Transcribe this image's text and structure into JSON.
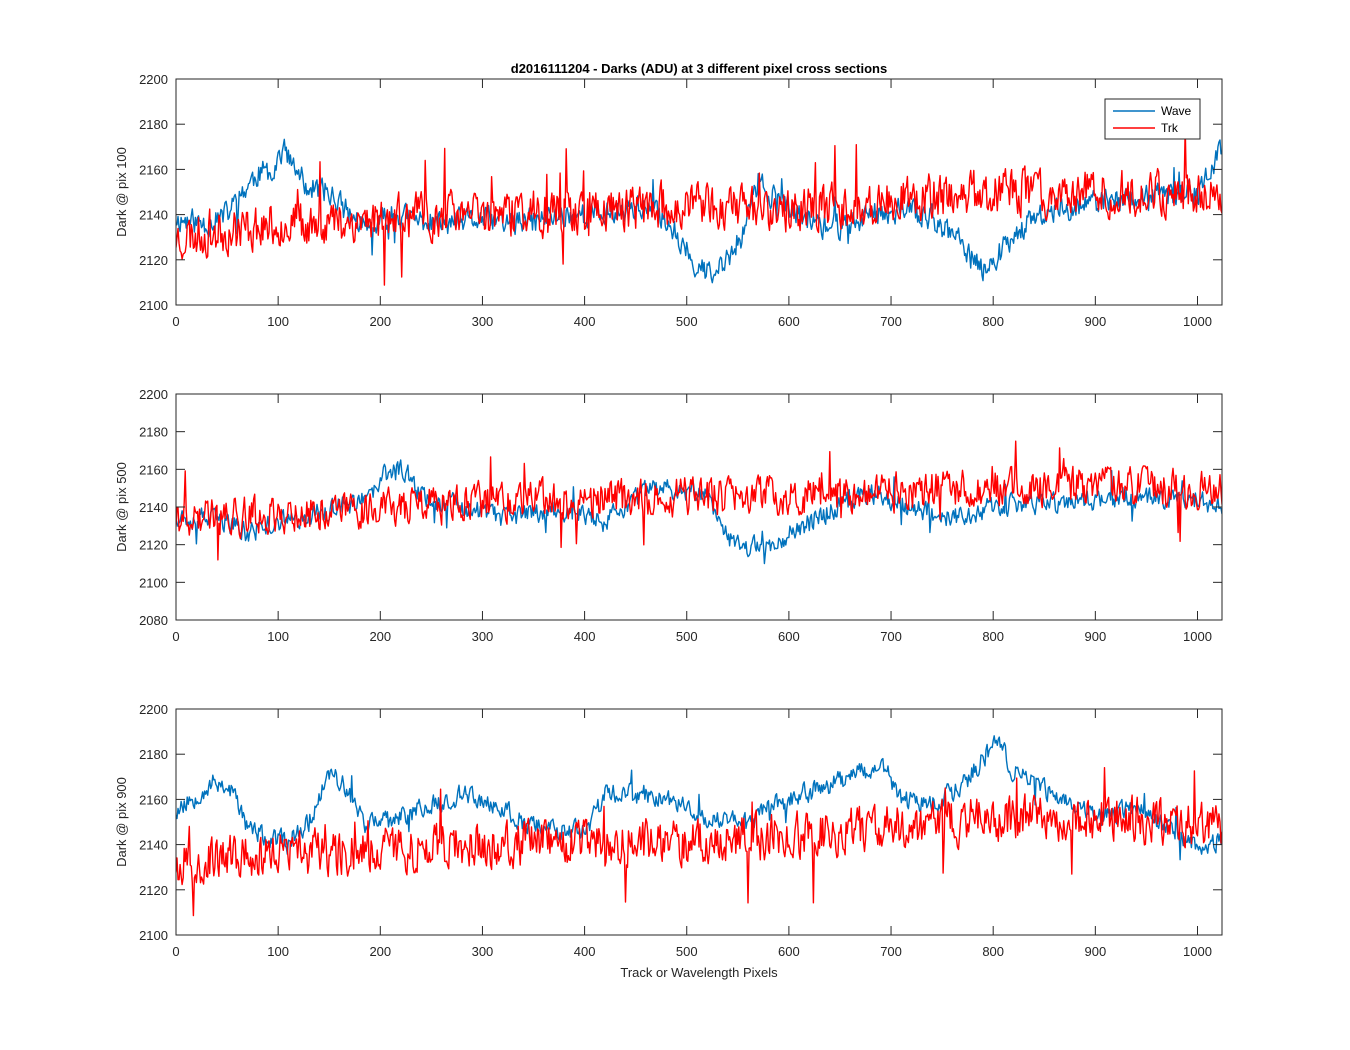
{
  "chart_data": [
    {
      "type": "line",
      "title": "d2016111204 - Darks (ADU) at 3 different pixel cross sections",
      "xlabel": "",
      "ylabel": "Dark @ pix 100",
      "xlim": [
        0,
        1024
      ],
      "ylim": [
        2100,
        2200
      ],
      "xticks": [
        0,
        100,
        200,
        300,
        400,
        500,
        600,
        700,
        800,
        900,
        1000
      ],
      "yticks": [
        2100,
        2120,
        2140,
        2160,
        2180,
        2200
      ],
      "legend": {
        "position": "top-right",
        "entries": [
          "Wave",
          "Trk"
        ]
      },
      "series": [
        {
          "name": "Wave",
          "color": "#0072BD",
          "noise": 5,
          "seed": 11,
          "points": [
            [
              0,
              2138
            ],
            [
              30,
              2136
            ],
            [
              50,
              2140
            ],
            [
              65,
              2150
            ],
            [
              80,
              2158
            ],
            [
              95,
              2160
            ],
            [
              105,
              2170
            ],
            [
              115,
              2160
            ],
            [
              130,
              2152
            ],
            [
              150,
              2150
            ],
            [
              170,
              2140
            ],
            [
              190,
              2132
            ],
            [
              210,
              2140
            ],
            [
              230,
              2138
            ],
            [
              260,
              2136
            ],
            [
              300,
              2138
            ],
            [
              340,
              2136
            ],
            [
              380,
              2140
            ],
            [
              420,
              2140
            ],
            [
              450,
              2144
            ],
            [
              480,
              2138
            ],
            [
              495,
              2128
            ],
            [
              510,
              2118
            ],
            [
              525,
              2112
            ],
            [
              540,
              2120
            ],
            [
              555,
              2132
            ],
            [
              570,
              2155
            ],
            [
              585,
              2148
            ],
            [
              600,
              2142
            ],
            [
              620,
              2138
            ],
            [
              640,
              2134
            ],
            [
              660,
              2136
            ],
            [
              680,
              2140
            ],
            [
              700,
              2142
            ],
            [
              720,
              2142
            ],
            [
              740,
              2138
            ],
            [
              760,
              2132
            ],
            [
              775,
              2122
            ],
            [
              790,
              2116
            ],
            [
              805,
              2122
            ],
            [
              820,
              2132
            ],
            [
              850,
              2140
            ],
            [
              880,
              2144
            ],
            [
              920,
              2146
            ],
            [
              960,
              2148
            ],
            [
              1000,
              2150
            ],
            [
              1024,
              2168
            ]
          ]
        },
        {
          "name": "Trk",
          "color": "#FF0000",
          "noise": 9,
          "seed": 23,
          "points": [
            [
              0,
              2130
            ],
            [
              100,
              2136
            ],
            [
              200,
              2138
            ],
            [
              300,
              2140
            ],
            [
              400,
              2142
            ],
            [
              500,
              2144
            ],
            [
              600,
              2142
            ],
            [
              700,
              2146
            ],
            [
              800,
              2150
            ],
            [
              900,
              2150
            ],
            [
              1024,
              2150
            ]
          ]
        }
      ]
    },
    {
      "type": "line",
      "title": "",
      "xlabel": "",
      "ylabel": "Dark @ pix 500",
      "xlim": [
        0,
        1024
      ],
      "ylim": [
        2080,
        2200
      ],
      "xticks": [
        0,
        100,
        200,
        300,
        400,
        500,
        600,
        700,
        800,
        900,
        1000
      ],
      "yticks": [
        2080,
        2100,
        2120,
        2140,
        2160,
        2180,
        2200
      ],
      "series": [
        {
          "name": "Wave",
          "color": "#0072BD",
          "noise": 5,
          "seed": 37,
          "points": [
            [
              0,
              2136
            ],
            [
              50,
              2132
            ],
            [
              70,
              2126
            ],
            [
              100,
              2132
            ],
            [
              150,
              2138
            ],
            [
              190,
              2144
            ],
            [
              205,
              2158
            ],
            [
              225,
              2160
            ],
            [
              240,
              2146
            ],
            [
              280,
              2140
            ],
            [
              320,
              2134
            ],
            [
              360,
              2138
            ],
            [
              400,
              2136
            ],
            [
              420,
              2132
            ],
            [
              440,
              2140
            ],
            [
              460,
              2148
            ],
            [
              480,
              2150
            ],
            [
              520,
              2148
            ],
            [
              545,
              2120
            ],
            [
              575,
              2118
            ],
            [
              600,
              2126
            ],
            [
              640,
              2138
            ],
            [
              680,
              2148
            ],
            [
              720,
              2140
            ],
            [
              760,
              2134
            ],
            [
              800,
              2140
            ],
            [
              850,
              2142
            ],
            [
              900,
              2144
            ],
            [
              950,
              2146
            ],
            [
              1000,
              2144
            ],
            [
              1024,
              2140
            ]
          ]
        },
        {
          "name": "Trk",
          "color": "#FF0000",
          "noise": 9,
          "seed": 41,
          "points": [
            [
              0,
              2134
            ],
            [
              100,
              2136
            ],
            [
              200,
              2140
            ],
            [
              300,
              2142
            ],
            [
              400,
              2144
            ],
            [
              500,
              2146
            ],
            [
              600,
              2146
            ],
            [
              700,
              2148
            ],
            [
              800,
              2150
            ],
            [
              900,
              2152
            ],
            [
              1024,
              2148
            ]
          ]
        }
      ]
    },
    {
      "type": "line",
      "title": "",
      "xlabel": "Track or Wavelength Pixels",
      "ylabel": "Dark @ pix 900",
      "xlim": [
        0,
        1024
      ],
      "ylim": [
        2100,
        2200
      ],
      "xticks": [
        0,
        100,
        200,
        300,
        400,
        500,
        600,
        700,
        800,
        900,
        1000
      ],
      "yticks": [
        2100,
        2120,
        2140,
        2160,
        2180,
        2200
      ],
      "series": [
        {
          "name": "Wave",
          "color": "#0072BD",
          "noise": 4,
          "seed": 53,
          "points": [
            [
              0,
              2155
            ],
            [
              20,
              2162
            ],
            [
              40,
              2168
            ],
            [
              55,
              2164
            ],
            [
              70,
              2148
            ],
            [
              90,
              2142
            ],
            [
              110,
              2142
            ],
            [
              130,
              2150
            ],
            [
              150,
              2172
            ],
            [
              165,
              2166
            ],
            [
              185,
              2150
            ],
            [
              210,
              2150
            ],
            [
              240,
              2156
            ],
            [
              280,
              2162
            ],
            [
              310,
              2158
            ],
            [
              340,
              2150
            ],
            [
              380,
              2146
            ],
            [
              400,
              2146
            ],
            [
              420,
              2162
            ],
            [
              460,
              2162
            ],
            [
              500,
              2158
            ],
            [
              520,
              2150
            ],
            [
              560,
              2152
            ],
            [
              600,
              2160
            ],
            [
              650,
              2168
            ],
            [
              690,
              2176
            ],
            [
              710,
              2160
            ],
            [
              740,
              2158
            ],
            [
              770,
              2166
            ],
            [
              790,
              2178
            ],
            [
              805,
              2186
            ],
            [
              820,
              2172
            ],
            [
              850,
              2164
            ],
            [
              880,
              2158
            ],
            [
              900,
              2152
            ],
            [
              940,
              2156
            ],
            [
              970,
              2148
            ],
            [
              1000,
              2140
            ],
            [
              1024,
              2142
            ]
          ]
        },
        {
          "name": "Trk",
          "color": "#FF0000",
          "noise": 9,
          "seed": 67,
          "points": [
            [
              0,
              2132
            ],
            [
              100,
              2136
            ],
            [
              200,
              2138
            ],
            [
              300,
              2140
            ],
            [
              400,
              2140
            ],
            [
              500,
              2142
            ],
            [
              600,
              2144
            ],
            [
              700,
              2148
            ],
            [
              800,
              2152
            ],
            [
              900,
              2152
            ],
            [
              1024,
              2148
            ]
          ]
        }
      ]
    }
  ]
}
